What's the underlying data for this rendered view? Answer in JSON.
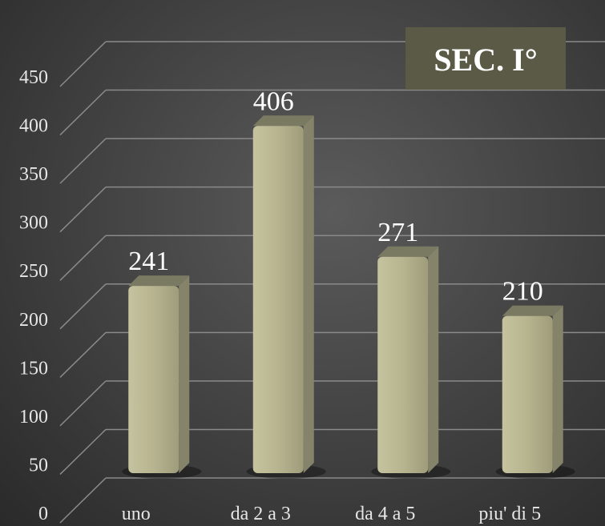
{
  "chart_data": {
    "type": "bar",
    "title": "SEC. I°",
    "categories": [
      "uno",
      "da 2 a 3",
      "da 4 a 5",
      "piu' di 5"
    ],
    "values": [
      241,
      406,
      271,
      210
    ],
    "data_labels": [
      "241",
      "406",
      "271",
      "210"
    ],
    "yticks": [
      "0",
      "50",
      "100",
      "150",
      "200",
      "250",
      "300",
      "350",
      "400",
      "450"
    ],
    "ylim": [
      0,
      450
    ],
    "grid": true,
    "colors": {
      "bar": "#b3b08c",
      "bar_side": "#85846a",
      "bar_top": "#7a7961",
      "grid": "#8a8a8a"
    }
  }
}
